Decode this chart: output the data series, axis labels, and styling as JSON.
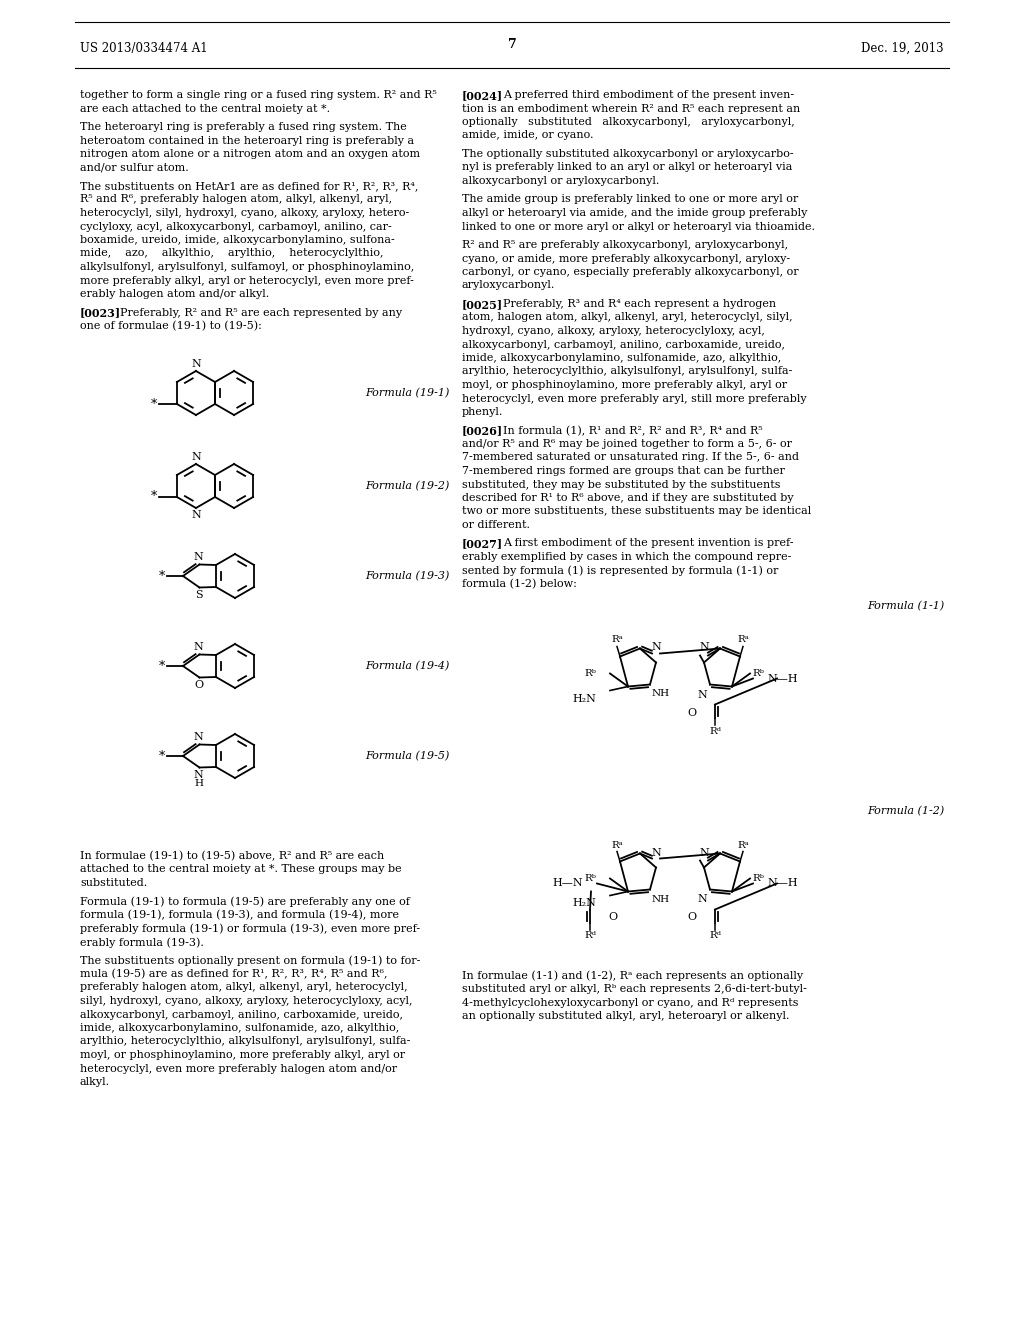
{
  "background_color": "#ffffff",
  "header_left": "US 2013/0334474 A1",
  "header_right": "Dec. 19, 2013",
  "page_number": "7"
}
